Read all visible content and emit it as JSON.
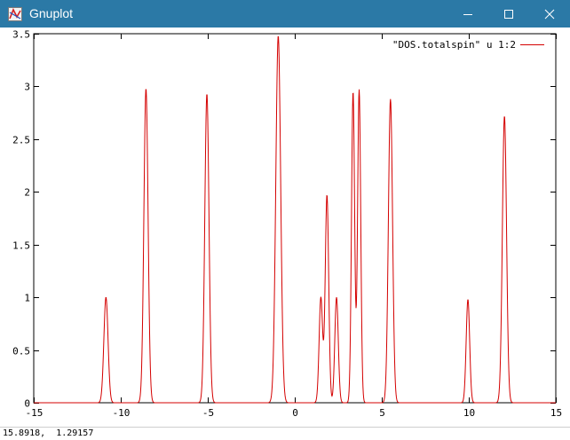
{
  "window": {
    "title": "Gnuplot",
    "icon": "gnuplot-app-icon",
    "controls": [
      "minimize-icon",
      "maximize-icon",
      "close-icon"
    ]
  },
  "status": {
    "coords": "15.8918,  1.29157"
  },
  "chart_data": {
    "type": "line",
    "xlim": [
      -15,
      15
    ],
    "ylim": [
      0,
      3.5
    ],
    "xticks": [
      -15,
      -10,
      -5,
      0,
      5,
      10,
      15
    ],
    "xtick_labels": [
      "-15",
      "-10",
      "-5",
      "0",
      "5",
      "10",
      "15"
    ],
    "yticks": [
      0,
      0.5,
      1,
      1.5,
      2,
      2.5,
      3,
      3.5
    ],
    "ytick_labels": [
      "0",
      "0.5",
      "1",
      "1.5",
      "2",
      "2.5",
      "3",
      "3.5"
    ],
    "grid": false,
    "legend_position": "top-right",
    "series": [
      {
        "name": "\"DOS.totalspin\" u 1:2",
        "color": "#d40000",
        "peaks": [
          {
            "center": -10.85,
            "height": 1.0,
            "width": 0.12
          },
          {
            "center": -8.55,
            "height": 2.98,
            "width": 0.12
          },
          {
            "center": -5.05,
            "height": 2.93,
            "width": 0.12
          },
          {
            "center": -0.95,
            "height": 3.48,
            "width": 0.14
          },
          {
            "center": 1.5,
            "height": 1.0,
            "width": 0.1
          },
          {
            "center": 1.85,
            "height": 1.97,
            "width": 0.1
          },
          {
            "center": 2.4,
            "height": 1.0,
            "width": 0.1
          },
          {
            "center": 3.35,
            "height": 2.95,
            "width": 0.09
          },
          {
            "center": 3.7,
            "height": 2.97,
            "width": 0.09
          },
          {
            "center": 5.5,
            "height": 2.88,
            "width": 0.12
          },
          {
            "center": 9.95,
            "height": 0.98,
            "width": 0.1
          },
          {
            "center": 12.05,
            "height": 2.72,
            "width": 0.12
          }
        ]
      }
    ]
  }
}
